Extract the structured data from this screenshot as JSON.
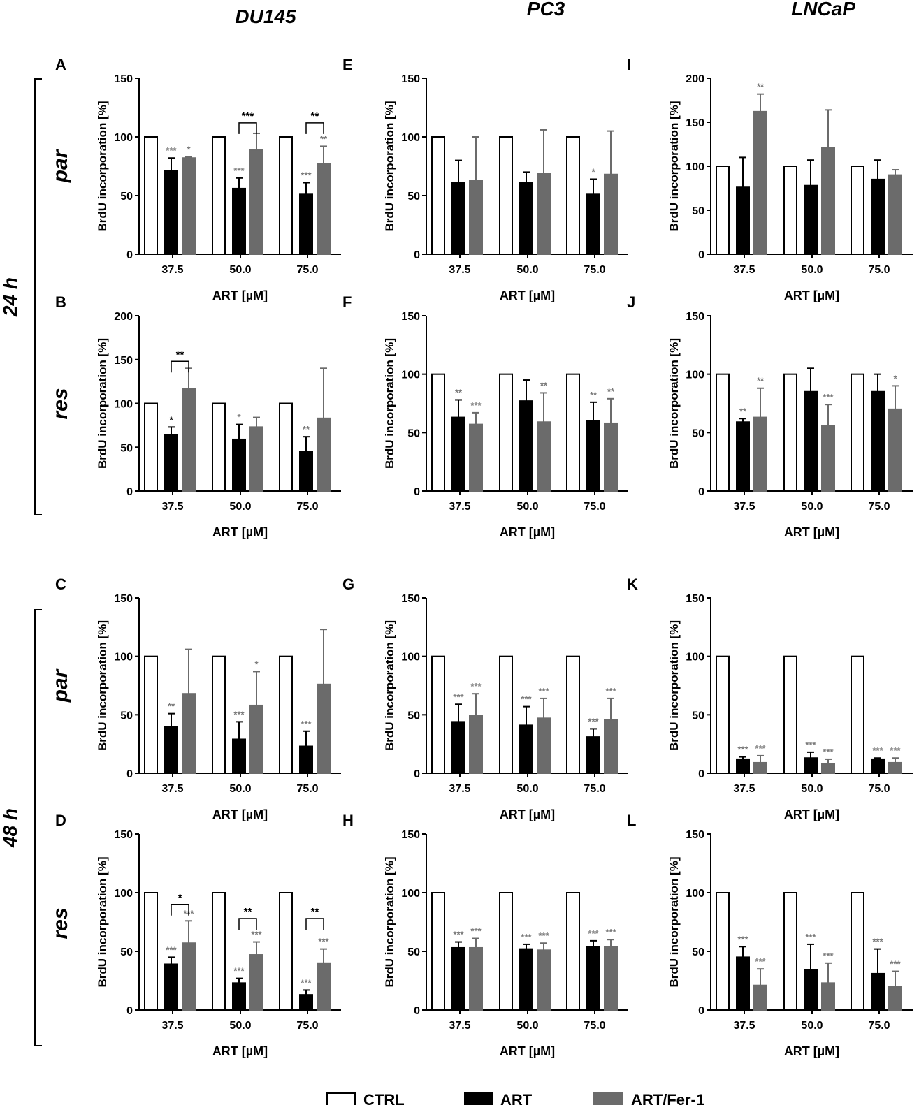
{
  "columns": [
    "DU145",
    "PC3",
    "LNCaP"
  ],
  "time_groups": [
    {
      "label": "24 h",
      "rows": [
        "par",
        "res"
      ]
    },
    {
      "label": "48 h",
      "rows": [
        "par",
        "res"
      ]
    }
  ],
  "legend": [
    {
      "label": "CTRL",
      "color": "#ffffff"
    },
    {
      "label": "ART",
      "color": "#000000"
    },
    {
      "label": "ART/Fer-1",
      "color": "#6b6b6b"
    }
  ],
  "colors": {
    "ctrl": "#ffffff",
    "art": "#000000",
    "fer": "#6b6b6b",
    "sig_gray": "#7a7a7a",
    "axis": "#000000"
  },
  "chart_data": [
    {
      "panel": "A",
      "cell_line": "DU145",
      "condition": "par",
      "time": "24 h",
      "type": "bar",
      "categories": [
        "37.5",
        "50.0",
        "75.0"
      ],
      "xlabel": "ART [µM]",
      "ylabel": "BrdU incorporation [%]",
      "ylim": [
        0,
        150
      ],
      "yticks": [
        0,
        50,
        100,
        150
      ],
      "series": [
        {
          "name": "CTRL",
          "values": [
            100,
            100,
            100
          ],
          "errors": [
            0,
            0,
            0
          ],
          "sig": [
            "",
            "",
            ""
          ]
        },
        {
          "name": "ART",
          "values": [
            71,
            56,
            51
          ],
          "errors": [
            11,
            9,
            10
          ],
          "sig": [
            "***",
            "***",
            "***"
          ]
        },
        {
          "name": "ART/Fer-1",
          "values": [
            82,
            89,
            77
          ],
          "errors": [
            1,
            14,
            15
          ],
          "sig": [
            "*",
            "",
            "**"
          ]
        }
      ],
      "brackets": [
        {
          "group": 1,
          "label": "***",
          "y": 112
        },
        {
          "group": 2,
          "label": "**",
          "y": 112
        }
      ]
    },
    {
      "panel": "B",
      "cell_line": "DU145",
      "condition": "res",
      "time": "24 h",
      "type": "bar",
      "categories": [
        "37.5",
        "50.0",
        "75.0"
      ],
      "xlabel": "ART [µM]",
      "ylabel": "BrdU incorporation [%]",
      "ylim": [
        0,
        200
      ],
      "yticks": [
        0,
        50,
        100,
        150,
        200
      ],
      "series": [
        {
          "name": "CTRL",
          "values": [
            100,
            100,
            100
          ],
          "errors": [
            0,
            0,
            0
          ],
          "sig": [
            "",
            "",
            ""
          ]
        },
        {
          "name": "ART",
          "values": [
            64,
            59,
            45
          ],
          "errors": [
            9,
            17,
            17
          ],
          "sig": [
            "*",
            "*",
            "**"
          ]
        },
        {
          "name": "ART/Fer-1",
          "values": [
            117,
            73,
            83
          ],
          "errors": [
            23,
            11,
            57
          ],
          "sig": [
            "",
            "",
            ""
          ]
        }
      ],
      "brackets": [
        {
          "group": 0,
          "label": "**",
          "y": 148
        }
      ],
      "sig_dark": {
        "group": 0,
        "series": 1
      }
    },
    {
      "panel": "C",
      "cell_line": "DU145",
      "condition": "par",
      "time": "48 h",
      "type": "bar",
      "categories": [
        "37.5",
        "50.0",
        "75.0"
      ],
      "xlabel": "ART [µM]",
      "ylabel": "BrdU incorporation [%]",
      "ylim": [
        0,
        150
      ],
      "yticks": [
        0,
        50,
        100,
        150
      ],
      "series": [
        {
          "name": "CTRL",
          "values": [
            100,
            100,
            100
          ],
          "errors": [
            0,
            0,
            0
          ],
          "sig": [
            "",
            "",
            ""
          ]
        },
        {
          "name": "ART",
          "values": [
            40,
            29,
            23
          ],
          "errors": [
            11,
            15,
            13
          ],
          "sig": [
            "**",
            "***",
            "***"
          ]
        },
        {
          "name": "ART/Fer-1",
          "values": [
            68,
            58,
            76
          ],
          "errors": [
            38,
            29,
            47
          ],
          "sig": [
            "",
            "*",
            ""
          ]
        }
      ],
      "brackets": []
    },
    {
      "panel": "D",
      "cell_line": "DU145",
      "condition": "res",
      "time": "48 h",
      "type": "bar",
      "categories": [
        "37.5",
        "50.0",
        "75.0"
      ],
      "xlabel": "ART [µM]",
      "ylabel": "BrdU incorporation [%]",
      "ylim": [
        0,
        150
      ],
      "yticks": [
        0,
        50,
        100,
        150
      ],
      "series": [
        {
          "name": "CTRL",
          "values": [
            100,
            100,
            100
          ],
          "errors": [
            0,
            0,
            0
          ],
          "sig": [
            "",
            "",
            ""
          ]
        },
        {
          "name": "ART",
          "values": [
            39,
            23,
            13
          ],
          "errors": [
            6,
            4,
            4
          ],
          "sig": [
            "***",
            "***",
            "***"
          ]
        },
        {
          "name": "ART/Fer-1",
          "values": [
            57,
            47,
            40
          ],
          "errors": [
            19,
            11,
            12
          ],
          "sig": [
            "***",
            "***",
            "***"
          ]
        }
      ],
      "brackets": [
        {
          "group": 0,
          "label": "*",
          "y": 90
        },
        {
          "group": 1,
          "label": "**",
          "y": 78
        },
        {
          "group": 2,
          "label": "**",
          "y": 78
        }
      ]
    },
    {
      "panel": "E",
      "cell_line": "PC3",
      "condition": "par",
      "time": "24 h",
      "type": "bar",
      "categories": [
        "37.5",
        "50.0",
        "75.0"
      ],
      "xlabel": "ART [µM]",
      "ylabel": "BrdU incorporation [%]",
      "ylim": [
        0,
        150
      ],
      "yticks": [
        0,
        50,
        100,
        150
      ],
      "series": [
        {
          "name": "CTRL",
          "values": [
            100,
            100,
            100
          ],
          "errors": [
            0,
            0,
            0
          ],
          "sig": [
            "",
            "",
            ""
          ]
        },
        {
          "name": "ART",
          "values": [
            61,
            61,
            51
          ],
          "errors": [
            19,
            9,
            13
          ],
          "sig": [
            "",
            "",
            "*"
          ]
        },
        {
          "name": "ART/Fer-1",
          "values": [
            63,
            69,
            68
          ],
          "errors": [
            37,
            37,
            37
          ],
          "sig": [
            "",
            "",
            ""
          ]
        }
      ],
      "brackets": []
    },
    {
      "panel": "F",
      "cell_line": "PC3",
      "condition": "res",
      "time": "24 h",
      "type": "bar",
      "categories": [
        "37.5",
        "50.0",
        "75.0"
      ],
      "xlabel": "ART [µM]",
      "ylabel": "BrdU incorporation [%]",
      "ylim": [
        0,
        150
      ],
      "yticks": [
        0,
        50,
        100,
        150
      ],
      "series": [
        {
          "name": "CTRL",
          "values": [
            100,
            100,
            100
          ],
          "errors": [
            0,
            0,
            0
          ],
          "sig": [
            "",
            "",
            ""
          ]
        },
        {
          "name": "ART",
          "values": [
            63,
            77,
            60
          ],
          "errors": [
            15,
            18,
            16
          ],
          "sig": [
            "**",
            "",
            "**"
          ]
        },
        {
          "name": "ART/Fer-1",
          "values": [
            57,
            59,
            58
          ],
          "errors": [
            10,
            25,
            21
          ],
          "sig": [
            "***",
            "**",
            "**"
          ]
        }
      ],
      "brackets": []
    },
    {
      "panel": "G",
      "cell_line": "PC3",
      "condition": "par",
      "time": "48 h",
      "type": "bar",
      "categories": [
        "37.5",
        "50.0",
        "75.0"
      ],
      "xlabel": "ART [µM]",
      "ylabel": "BrdU incorporation [%]",
      "ylim": [
        0,
        150
      ],
      "yticks": [
        0,
        50,
        100,
        150
      ],
      "series": [
        {
          "name": "CTRL",
          "values": [
            100,
            100,
            100
          ],
          "errors": [
            0,
            0,
            0
          ],
          "sig": [
            "",
            "",
            ""
          ]
        },
        {
          "name": "ART",
          "values": [
            44,
            41,
            31
          ],
          "errors": [
            15,
            16,
            7
          ],
          "sig": [
            "***",
            "***",
            "***"
          ]
        },
        {
          "name": "ART/Fer-1",
          "values": [
            49,
            47,
            46
          ],
          "errors": [
            19,
            17,
            18
          ],
          "sig": [
            "***",
            "***",
            "***"
          ]
        }
      ],
      "brackets": []
    },
    {
      "panel": "H",
      "cell_line": "PC3",
      "condition": "res",
      "time": "48 h",
      "type": "bar",
      "categories": [
        "37.5",
        "50.0",
        "75.0"
      ],
      "xlabel": "ART [µM]",
      "ylabel": "BrdU incorporation [%]",
      "ylim": [
        0,
        150
      ],
      "yticks": [
        0,
        50,
        100,
        150
      ],
      "series": [
        {
          "name": "CTRL",
          "values": [
            100,
            100,
            100
          ],
          "errors": [
            0,
            0,
            0
          ],
          "sig": [
            "",
            "",
            ""
          ]
        },
        {
          "name": "ART",
          "values": [
            53,
            52,
            54
          ],
          "errors": [
            5,
            4,
            5
          ],
          "sig": [
            "***",
            "***",
            "***"
          ]
        },
        {
          "name": "ART/Fer-1",
          "values": [
            53,
            51,
            54
          ],
          "errors": [
            8,
            6,
            6
          ],
          "sig": [
            "***",
            "***",
            "***"
          ]
        }
      ],
      "brackets": []
    },
    {
      "panel": "I",
      "cell_line": "LNCaP",
      "condition": "par",
      "time": "24 h",
      "type": "bar",
      "categories": [
        "37.5",
        "50.0",
        "75.0"
      ],
      "xlabel": "ART [µM]",
      "ylabel": "BrdU incorporation [%]",
      "ylim": [
        0,
        200
      ],
      "yticks": [
        0,
        50,
        100,
        150,
        200
      ],
      "series": [
        {
          "name": "CTRL",
          "values": [
            100,
            100,
            100
          ],
          "errors": [
            0,
            0,
            0
          ],
          "sig": [
            "",
            "",
            ""
          ]
        },
        {
          "name": "ART",
          "values": [
            76,
            78,
            85
          ],
          "errors": [
            34,
            29,
            22
          ],
          "sig": [
            "",
            "",
            ""
          ]
        },
        {
          "name": "ART/Fer-1",
          "values": [
            162,
            121,
            90
          ],
          "errors": [
            20,
            43,
            6
          ],
          "sig": [
            "**",
            "",
            ""
          ]
        }
      ],
      "brackets": []
    },
    {
      "panel": "J",
      "cell_line": "LNCaP",
      "condition": "res",
      "time": "24 h",
      "type": "bar",
      "categories": [
        "37.5",
        "50.0",
        "75.0"
      ],
      "xlabel": "ART [µM]",
      "ylabel": "BrdU incorporation [%]",
      "ylim": [
        0,
        150
      ],
      "yticks": [
        0,
        50,
        100,
        150
      ],
      "series": [
        {
          "name": "CTRL",
          "values": [
            100,
            100,
            100
          ],
          "errors": [
            0,
            0,
            0
          ],
          "sig": [
            "",
            "",
            ""
          ]
        },
        {
          "name": "ART",
          "values": [
            59,
            85,
            85
          ],
          "errors": [
            3,
            20,
            15
          ],
          "sig": [
            "**",
            "",
            ""
          ]
        },
        {
          "name": "ART/Fer-1",
          "values": [
            63,
            56,
            70
          ],
          "errors": [
            25,
            18,
            20
          ],
          "sig": [
            "**",
            "***",
            "*"
          ]
        }
      ],
      "brackets": []
    },
    {
      "panel": "K",
      "cell_line": "LNCaP",
      "condition": "par",
      "time": "48 h",
      "type": "bar",
      "categories": [
        "37.5",
        "50.0",
        "75.0"
      ],
      "xlabel": "ART [µM]",
      "ylabel": "BrdU incorporation [%]",
      "ylim": [
        0,
        150
      ],
      "yticks": [
        0,
        50,
        100,
        150
      ],
      "series": [
        {
          "name": "CTRL",
          "values": [
            100,
            100,
            100
          ],
          "errors": [
            0,
            0,
            0
          ],
          "sig": [
            "",
            "",
            ""
          ]
        },
        {
          "name": "ART",
          "values": [
            12,
            13,
            12
          ],
          "errors": [
            2,
            5,
            1
          ],
          "sig": [
            "***",
            "***",
            "***"
          ]
        },
        {
          "name": "ART/Fer-1",
          "values": [
            9,
            8,
            9
          ],
          "errors": [
            6,
            4,
            4
          ],
          "sig": [
            "***",
            "***",
            "***"
          ]
        }
      ],
      "brackets": []
    },
    {
      "panel": "L",
      "cell_line": "LNCaP",
      "condition": "res",
      "time": "48 h",
      "type": "bar",
      "categories": [
        "37.5",
        "50.0",
        "75.0"
      ],
      "xlabel": "ART [µM]",
      "ylabel": "BrdU incorporation [%]",
      "ylim": [
        0,
        150
      ],
      "yticks": [
        0,
        50,
        100,
        150
      ],
      "series": [
        {
          "name": "CTRL",
          "values": [
            100,
            100,
            100
          ],
          "errors": [
            0,
            0,
            0
          ],
          "sig": [
            "",
            "",
            ""
          ]
        },
        {
          "name": "ART",
          "values": [
            45,
            34,
            31
          ],
          "errors": [
            9,
            22,
            21
          ],
          "sig": [
            "***",
            "***",
            "***"
          ]
        },
        {
          "name": "ART/Fer-1",
          "values": [
            21,
            23,
            20
          ],
          "errors": [
            14,
            17,
            13
          ],
          "sig": [
            "***",
            "***",
            "***"
          ]
        }
      ],
      "brackets": []
    }
  ]
}
